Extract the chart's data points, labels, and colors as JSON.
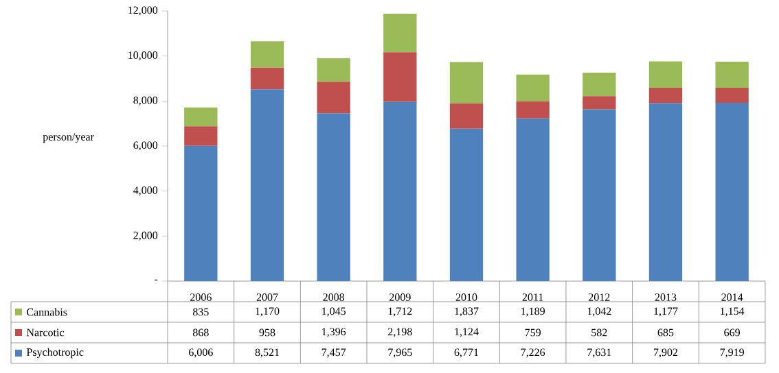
{
  "chart_data": {
    "type": "bar",
    "stacked": true,
    "ylabel": "person/year",
    "categories": [
      "2006",
      "2007",
      "2008",
      "2009",
      "2010",
      "2011",
      "2012",
      "2013",
      "2014"
    ],
    "series": [
      {
        "name": "Psychotropic",
        "color": "#4f81bd",
        "values": [
          6006,
          8521,
          7457,
          7965,
          6771,
          7226,
          7631,
          7902,
          7919
        ],
        "value_labels": [
          "6,006",
          "8,521",
          "7,457",
          "7,965",
          "6,771",
          "7,226",
          "7,631",
          "7,902",
          "7,919"
        ]
      },
      {
        "name": "Narcotic",
        "color": "#c0504d",
        "values": [
          868,
          958,
          1396,
          2198,
          1124,
          759,
          582,
          685,
          669
        ],
        "value_labels": [
          "868",
          "958",
          "1,396",
          "2,198",
          "1,124",
          "759",
          "582",
          "685",
          "669"
        ]
      },
      {
        "name": "Cannabis",
        "color": "#9bbb59",
        "values": [
          835,
          1170,
          1045,
          1712,
          1837,
          1189,
          1042,
          1177,
          1154
        ],
        "value_labels": [
          "835",
          "1,170",
          "1,045",
          "1,712",
          "1,837",
          "1,189",
          "1,042",
          "1,177",
          "1,154"
        ]
      }
    ],
    "ylim": [
      0,
      12000
    ],
    "yticks": [
      {
        "value": 0,
        "label": "-"
      },
      {
        "value": 2000,
        "label": "2,000"
      },
      {
        "value": 4000,
        "label": "4,000"
      },
      {
        "value": 6000,
        "label": "6,000"
      },
      {
        "value": 8000,
        "label": "8,000"
      },
      {
        "value": 10000,
        "label": "10,000"
      },
      {
        "value": 12000,
        "label": "12,000"
      }
    ],
    "legend": "bottom left",
    "grid": false
  }
}
